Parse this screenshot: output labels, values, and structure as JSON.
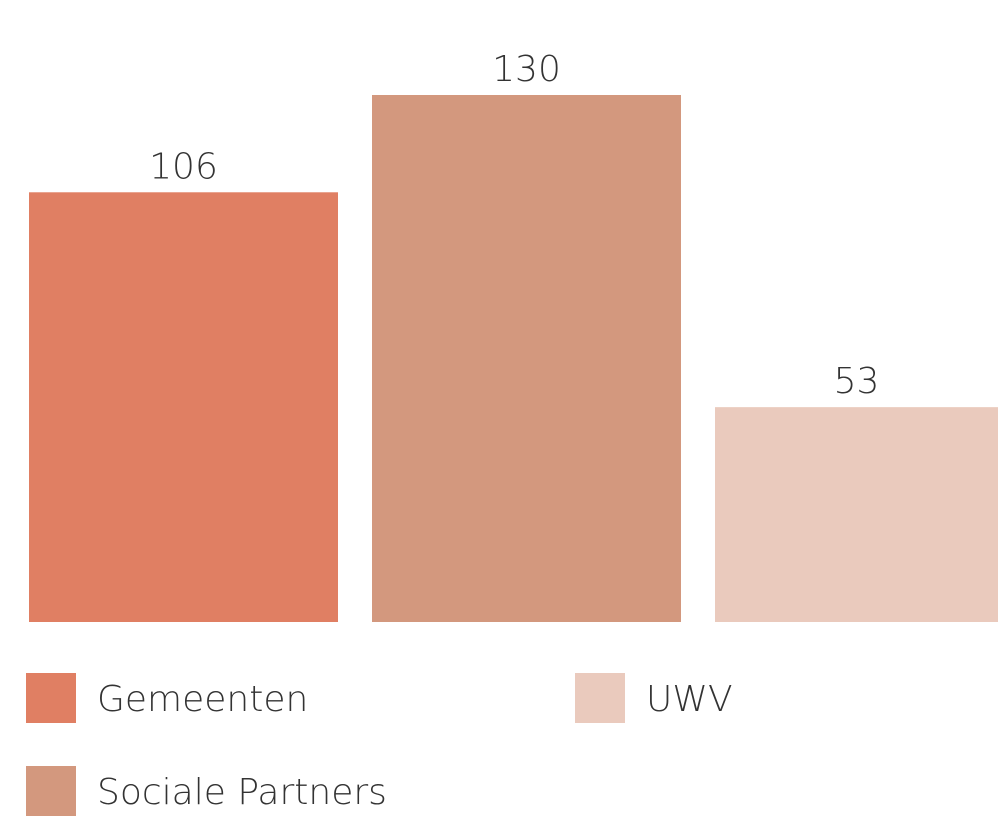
{
  "chart_data": {
    "type": "bar",
    "series": [
      {
        "name": "Gemeenten",
        "color": "#e07f63",
        "values": [
          106
        ]
      },
      {
        "name": "Sociale Partners",
        "color": "#d3987e",
        "values": [
          130
        ]
      },
      {
        "name": "UWV",
        "color": "#eacabd",
        "values": [
          53
        ]
      }
    ]
  }
}
